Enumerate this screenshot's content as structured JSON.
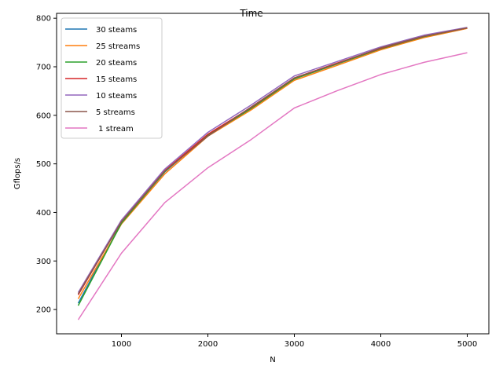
{
  "chart_data": {
    "type": "line",
    "title": "Time",
    "xlabel": "N",
    "ylabel": "Gflops/s",
    "xlim": [
      250,
      5250
    ],
    "ylim": [
      150,
      810
    ],
    "xticks": [
      1000,
      2000,
      3000,
      4000,
      5000
    ],
    "yticks": [
      200,
      300,
      400,
      500,
      600,
      700,
      800
    ],
    "grid": false,
    "legend_position": "top-left",
    "x": [
      500,
      1000,
      1500,
      2000,
      2500,
      3000,
      3500,
      4000,
      4500,
      5000
    ],
    "series": [
      {
        "name": "30 steams",
        "color": "#1f77b4",
        "values": [
          213,
          379,
          483,
          560,
          615,
          676,
          707,
          738,
          763,
          780
        ]
      },
      {
        "name": "25 streams",
        "color": "#ff7f0e",
        "values": [
          222,
          376,
          479,
          557,
          611,
          672,
          703,
          735,
          760,
          779
        ]
      },
      {
        "name": "20 steams",
        "color": "#2ca02c",
        "values": [
          208,
          378,
          484,
          559,
          614,
          675,
          706,
          737,
          762,
          780
        ]
      },
      {
        "name": "15 steams",
        "color": "#d62728",
        "values": [
          230,
          382,
          486,
          561,
          616,
          677,
          708,
          738,
          763,
          780
        ]
      },
      {
        "name": "10 steams",
        "color": "#9467bd",
        "values": [
          235,
          384,
          489,
          565,
          621,
          681,
          711,
          741,
          765,
          781
        ]
      },
      {
        "name": "5 streams",
        "color": "#8c564b",
        "values": [
          232,
          381,
          485,
          557,
          617,
          677,
          707,
          739,
          763,
          780
        ]
      },
      {
        "name": " 1 stream",
        "color": "#e377c2",
        "values": [
          179,
          316,
          420,
          492,
          550,
          615,
          651,
          684,
          709,
          729
        ]
      }
    ]
  }
}
